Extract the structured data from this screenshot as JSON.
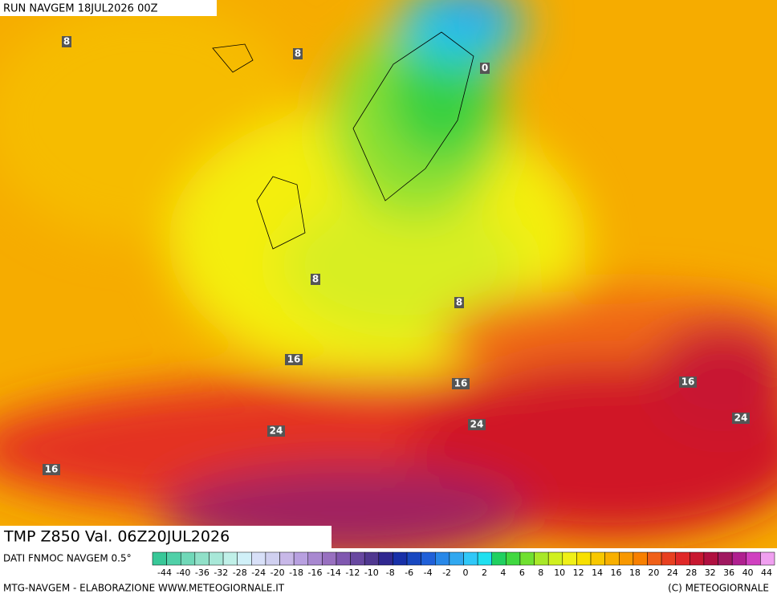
{
  "header": {
    "run": "RUN NAVGEM 18JUL2026 00Z"
  },
  "contour_labels": [
    "8",
    "8",
    "0",
    "8",
    "8",
    "16",
    "16",
    "16",
    "24",
    "24",
    "24",
    "16"
  ],
  "title": "TMP Z850 Val. 06Z20JUL2026",
  "legend": {
    "source": "DATI FNMOC NAVGEM 0.5°",
    "colors": [
      "#38c898",
      "#50d0a8",
      "#70d8b8",
      "#90e0c8",
      "#a8e8d8",
      "#c0f0e8",
      "#d0f0f8",
      "#d8e0f8",
      "#d0d0f0",
      "#c8b8e8",
      "#b8a0e0",
      "#a888d0",
      "#9870c0",
      "#8058b0",
      "#6848a0",
      "#503890",
      "#302890",
      "#1830a8",
      "#1848c0",
      "#2060d8",
      "#2888e8",
      "#30a8f0",
      "#30c8f8",
      "#20e0f0",
      "#20d060",
      "#40d840",
      "#70e030",
      "#a8e828",
      "#d0f020",
      "#f0f018",
      "#f8e000",
      "#f8c800",
      "#f8b000",
      "#f89800",
      "#f88000",
      "#f06018",
      "#e84020",
      "#e02828",
      "#c81830",
      "#b01040",
      "#a01860",
      "#b02090",
      "#d040c0",
      "#f0a0f0"
    ],
    "labels": [
      "-44",
      "-40",
      "-36",
      "-32",
      "-28",
      "-24",
      "-20",
      "-18",
      "-16",
      "-14",
      "-12",
      "-10",
      "-8",
      "-6",
      "-4",
      "-2",
      "0",
      "2",
      "4",
      "6",
      "8",
      "10",
      "12",
      "14",
      "16",
      "18",
      "20",
      "24",
      "28",
      "32",
      "36",
      "40",
      "44"
    ]
  },
  "footer": {
    "left": "MTG-NAVGEM - ELABORAZIONE WWW.METEOGIORNALE.IT",
    "right": "(C) METEOGIORNALE"
  }
}
